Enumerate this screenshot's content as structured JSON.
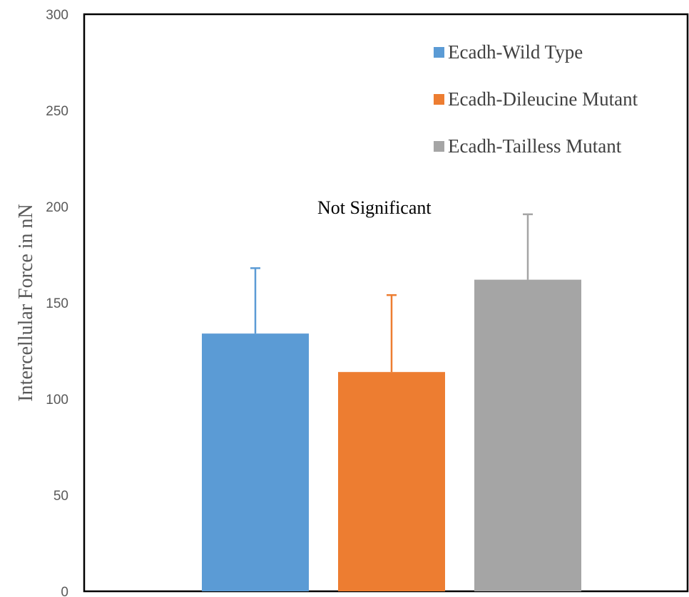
{
  "chart_data": {
    "type": "bar",
    "categories": [
      "Ecadh-Wild Type",
      "Ecadh-Dileucine Mutant",
      "Ecadh-Tailless Mutant"
    ],
    "values": [
      134,
      114,
      162
    ],
    "error_plus": [
      34,
      40,
      34
    ],
    "colors": [
      "#5B9BD5",
      "#ED7D31",
      "#A5A5A5"
    ],
    "title": "",
    "xlabel": "",
    "ylabel": "Intercellular Force in nN",
    "ylim": [
      0,
      300
    ],
    "yticks": [
      0,
      50,
      100,
      150,
      200,
      250,
      300
    ],
    "legend": {
      "placement": "top-right",
      "entries": [
        "Ecadh-Wild Type",
        "Ecadh-Dileucine Mutant",
        "Ecadh-Tailless Mutant"
      ]
    },
    "annotation": "Not Significant",
    "grid": false
  }
}
